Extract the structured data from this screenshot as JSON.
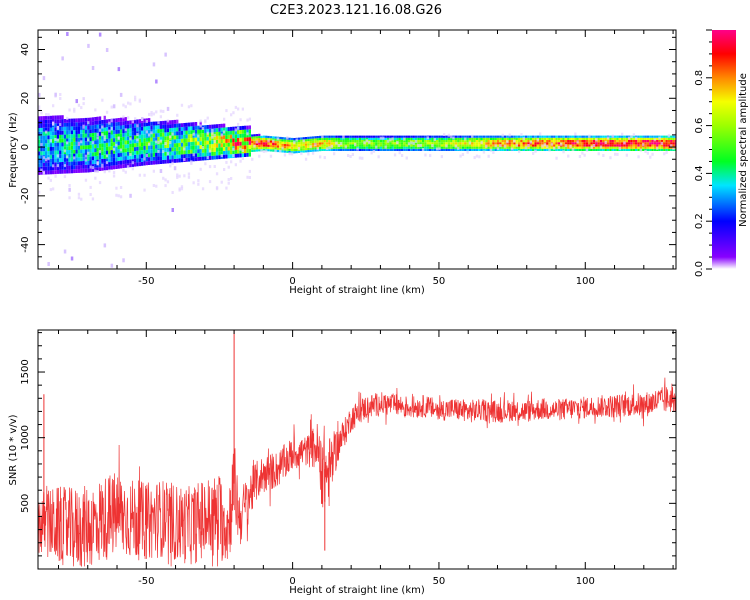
{
  "title": "C2E3.2023.121.16.08.G26",
  "colors": {
    "snr_line": "#ee3333",
    "spectral_colormap": [
      "#8800ff",
      "#0000ff",
      "#00e5ff",
      "#00ff22",
      "#f5ff00",
      "#ff8800",
      "#ff0000",
      "#ff0088"
    ],
    "axis": "#000000",
    "background": "#ffffff"
  },
  "chart_data": [
    {
      "type": "heatmap",
      "xlabel": "Height of straight line (km)",
      "ylabel": "Frequency (Hz)",
      "xlim": [
        -87,
        131
      ],
      "ylim": [
        -50,
        48
      ],
      "xticks": [
        -50,
        0,
        50,
        100
      ],
      "yticks": [
        -40,
        -20,
        0,
        20,
        40
      ],
      "grid": false,
      "colorbar": {
        "label": "Normalized spectral amplitude",
        "range": [
          0.0,
          1.0
        ],
        "ticks": [
          "0.0",
          "0.2",
          "0.4",
          "0.6",
          "0.8"
        ],
        "tick_values": [
          0.0,
          0.2,
          0.4,
          0.6,
          0.8
        ]
      },
      "bands": [
        {
          "x": -87,
          "center": 0,
          "halfwidth": 9,
          "amplitude": 0.35
        },
        {
          "x": -70,
          "center": 0,
          "halfwidth": 8,
          "amplitude": 0.4
        },
        {
          "x": -50,
          "center": 1,
          "halfwidth": 6,
          "amplitude": 0.45
        },
        {
          "x": -30,
          "center": 1,
          "halfwidth": 4,
          "amplitude": 0.55
        },
        {
          "x": -20,
          "center": 1,
          "halfwidth": 3,
          "amplitude": 0.75
        },
        {
          "x": -10,
          "center": 1,
          "halfwidth": 2,
          "amplitude": 0.9
        },
        {
          "x": 0,
          "center": 0,
          "halfwidth": 2,
          "amplitude": 0.7
        },
        {
          "x": 10,
          "center": 1,
          "halfwidth": 2,
          "amplitude": 0.75
        },
        {
          "x": 20,
          "center": 1,
          "halfwidth": 2,
          "amplitude": 0.55
        },
        {
          "x": 50,
          "center": 1,
          "halfwidth": 2,
          "amplitude": 0.6
        },
        {
          "x": 75,
          "center": 1,
          "halfwidth": 2,
          "amplitude": 0.8
        },
        {
          "x": 100,
          "center": 1,
          "halfwidth": 2,
          "amplitude": 0.9
        },
        {
          "x": 131,
          "center": 1,
          "halfwidth": 2,
          "amplitude": 0.95
        }
      ]
    },
    {
      "type": "line",
      "xlabel": "Height of straight line (km)",
      "ylabel": "SNR (10 * v/v)",
      "xlim": [
        -87,
        131
      ],
      "ylim": [
        0,
        1820
      ],
      "xticks": [
        -50,
        0,
        50,
        100
      ],
      "yticks": [
        500,
        1000,
        1500
      ],
      "grid": false,
      "series": [
        {
          "x": [
            -87,
            -80,
            -75,
            -70,
            -65,
            -60,
            -55,
            -50,
            -45,
            -40,
            -35,
            -30,
            -25,
            -22,
            -20,
            -18,
            -15,
            -12,
            -10,
            -5,
            0,
            5,
            8,
            10,
            12,
            15,
            18,
            20,
            25,
            30,
            35,
            40,
            45,
            50,
            55,
            60,
            65,
            70,
            75,
            80,
            85,
            90,
            95,
            100,
            105,
            110,
            115,
            120,
            125,
            131
          ],
          "y": [
            350,
            330,
            300,
            320,
            380,
            420,
            380,
            360,
            390,
            350,
            330,
            380,
            400,
            320,
            650,
            380,
            550,
            680,
            720,
            760,
            880,
            900,
            930,
            820,
            700,
            920,
            1050,
            1150,
            1230,
            1260,
            1250,
            1230,
            1240,
            1210,
            1220,
            1200,
            1210,
            1200,
            1210,
            1200,
            1220,
            1210,
            1220,
            1230,
            1240,
            1240,
            1250,
            1250,
            1280,
            1300
          ],
          "spread": [
            250,
            300,
            320,
            320,
            330,
            330,
            310,
            300,
            300,
            300,
            300,
            320,
            340,
            300,
            350,
            220,
            200,
            150,
            150,
            140,
            130,
            120,
            180,
            350,
            300,
            150,
            110,
            100,
            95,
            90,
            85,
            85,
            85,
            85,
            85,
            90,
            85,
            85,
            85,
            85,
            85,
            85,
            85,
            85,
            85,
            90,
            90,
            95,
            100,
            110
          ],
          "spikes": [
            {
              "x": -20,
              "y": 1820
            },
            {
              "x": -85,
              "y": 1330
            },
            {
              "x": 11,
              "y": 140
            }
          ]
        }
      ]
    }
  ]
}
